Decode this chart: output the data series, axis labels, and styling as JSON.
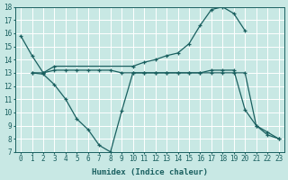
{
  "xlabel": "Humidex (Indice chaleur)",
  "xlim": [
    -0.5,
    23.5
  ],
  "ylim": [
    7,
    18
  ],
  "yticks": [
    7,
    8,
    9,
    10,
    11,
    12,
    13,
    14,
    15,
    16,
    17,
    18
  ],
  "xticks": [
    0,
    1,
    2,
    3,
    4,
    5,
    6,
    7,
    8,
    9,
    10,
    11,
    12,
    13,
    14,
    15,
    16,
    17,
    18,
    19,
    20,
    21,
    22,
    23
  ],
  "bg_color": "#c8e8e4",
  "line_color": "#1a6060",
  "grid_color": "#ffffff",
  "lines": [
    {
      "x": [
        0,
        1,
        2,
        3,
        10,
        11,
        12,
        13,
        14,
        15,
        16,
        17,
        18,
        19,
        20
      ],
      "y": [
        15.8,
        14.3,
        13.0,
        13.5,
        13.5,
        13.8,
        14.0,
        14.3,
        14.5,
        15.2,
        16.6,
        17.8,
        18.0,
        17.5,
        16.2
      ]
    },
    {
      "x": [
        1,
        2,
        3,
        4,
        5,
        6,
        7,
        8,
        9,
        10,
        11,
        12,
        13,
        14,
        15,
        16,
        17,
        18,
        19,
        20,
        21,
        22,
        23
      ],
      "y": [
        13.0,
        13.0,
        13.2,
        13.2,
        13.2,
        13.2,
        13.2,
        13.2,
        13.0,
        13.0,
        13.0,
        13.0,
        13.0,
        13.0,
        13.0,
        13.0,
        13.2,
        13.2,
        13.2,
        10.2,
        9.0,
        8.3,
        8.0
      ]
    },
    {
      "x": [
        1,
        2,
        3,
        4,
        5,
        6,
        7,
        8,
        9,
        10,
        11,
        12,
        13,
        14,
        15,
        16,
        17,
        18,
        19,
        20,
        21,
        22,
        23
      ],
      "y": [
        13.0,
        12.9,
        12.1,
        11.0,
        9.5,
        8.7,
        7.5,
        7.0,
        10.1,
        13.0,
        13.0,
        13.0,
        13.0,
        13.0,
        13.0,
        13.0,
        13.0,
        13.0,
        13.0,
        13.0,
        9.0,
        8.5,
        8.0
      ]
    }
  ]
}
